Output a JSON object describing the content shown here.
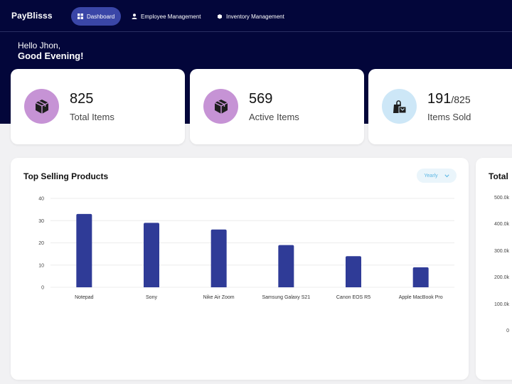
{
  "app": {
    "logo": "PayBlisss"
  },
  "nav": {
    "items": [
      {
        "label": "Dashboard",
        "icon": "grid-icon",
        "active": true
      },
      {
        "label": "Employee Management",
        "icon": "user-icon",
        "active": false
      },
      {
        "label": "Inventory Management",
        "icon": "box-icon",
        "active": false
      }
    ]
  },
  "greeting": {
    "line1": "Hello Jhon,",
    "line2": "Good Evening!"
  },
  "stats": [
    {
      "value": "825",
      "suffix": "",
      "label": "Total Items",
      "icon": "package-icon"
    },
    {
      "value": "569",
      "suffix": "",
      "label": "Active Items",
      "icon": "package-icon"
    },
    {
      "value": "191",
      "suffix": "/825",
      "label": "Items Sold",
      "icon": "shopping-bag-icon"
    }
  ],
  "top_selling": {
    "title": "Top Selling Products",
    "filter": "Yearly"
  },
  "total_panel": {
    "title": "Total",
    "ticks": [
      "500.0k",
      "400.0k",
      "300.0k",
      "200.0k",
      "100.0k",
      "0"
    ]
  },
  "colors": {
    "header": "#03063a",
    "accent": "#3a46a7",
    "bar": "#2f3b97",
    "icon_purple": "#c693d5",
    "icon_blue": "#cde7f7"
  },
  "chart_data": {
    "type": "bar",
    "title": "Top Selling Products",
    "categories": [
      "Notepad",
      "Sony",
      "Nike Air Zoom",
      "Samsung Galaxy S21",
      "Canon EOS R5",
      "Apple MacBook Pro"
    ],
    "values": [
      33,
      29,
      26,
      19,
      14,
      9
    ],
    "yticks": [
      0,
      10,
      20,
      30,
      40
    ],
    "ylim": [
      0,
      40
    ],
    "grid": true
  }
}
